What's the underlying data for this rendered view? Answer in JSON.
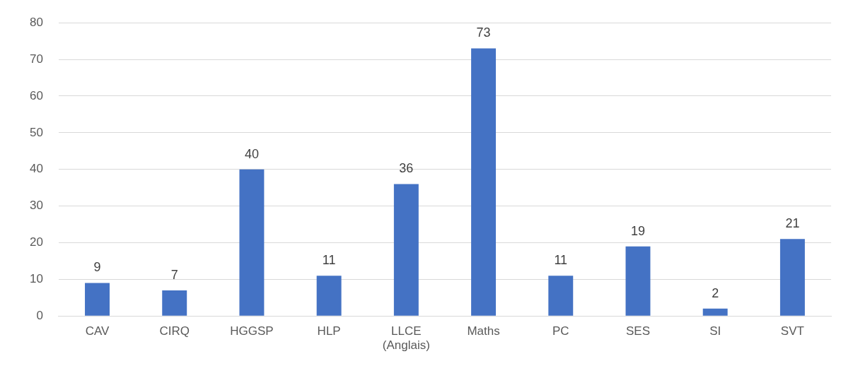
{
  "chart_data": {
    "type": "bar",
    "categories": [
      "CAV",
      "CIRQ",
      "HGGSP",
      "HLP",
      "LLCE (Anglais)",
      "Maths",
      "PC",
      "SES",
      "SI",
      "SVT"
    ],
    "values": [
      9,
      7,
      40,
      11,
      36,
      73,
      11,
      19,
      2,
      21
    ],
    "color": "#4472c4",
    "ylim": [
      0,
      80
    ],
    "yticks": [
      0,
      10,
      20,
      30,
      40,
      50,
      60,
      70,
      80
    ],
    "grid": "y",
    "data_labels": true,
    "legend": false
  }
}
